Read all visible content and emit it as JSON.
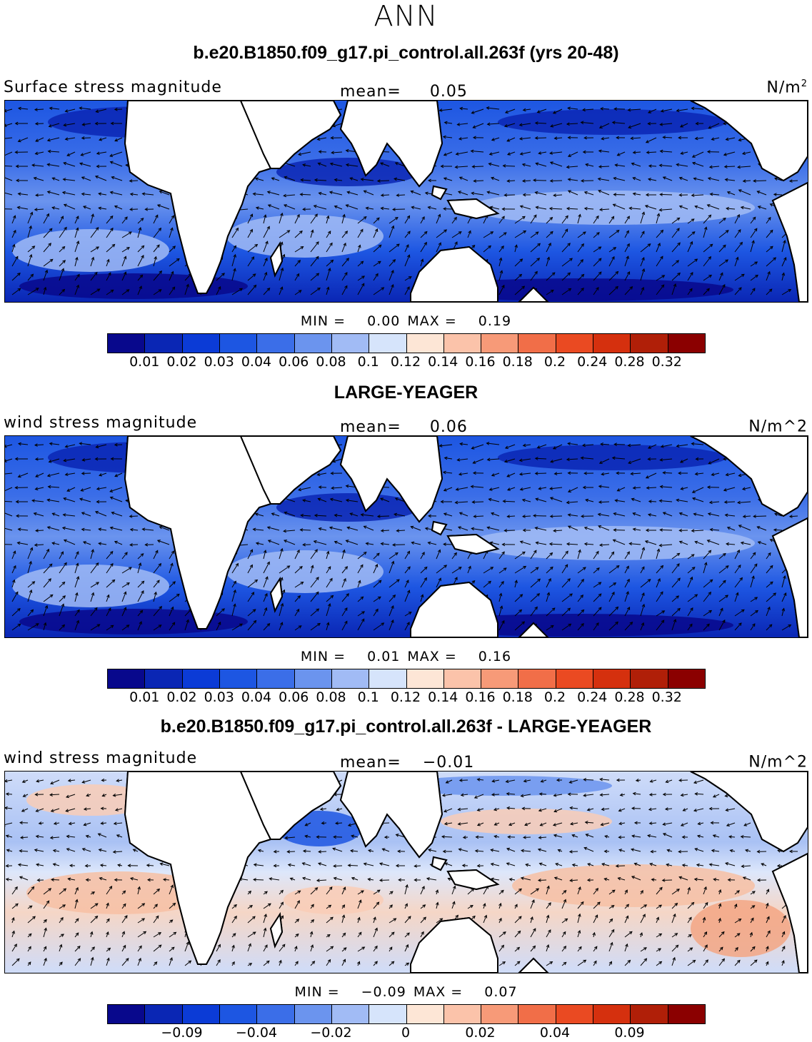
{
  "season": "ANN",
  "colorscale": [
    "#08088c",
    "#0a26b4",
    "#0b3bd6",
    "#1d56e2",
    "#3b6ee8",
    "#6b94ee",
    "#a1bbf5",
    "#d6e4fb",
    "#fde6d6",
    "#fbc3aa",
    "#f79a78",
    "#f16e48",
    "#ea4a22",
    "#d5300e",
    "#b01f08",
    "#8b0000"
  ],
  "panels": [
    {
      "title": "b.e20.B1850.f09_g17.pi_control.all.263f (yrs 20-48)",
      "left_label": "Surface stress magnitude",
      "mean_label": "mean=",
      "mean_value": "0.05",
      "units": "N/m",
      "units_sup": "2",
      "min_label": "MIN =",
      "min_value": "0.00",
      "max_label": "MAX =",
      "max_value": "0.19",
      "ticks": [
        "0.01",
        "0.02",
        "0.03",
        "0.04",
        "0.06",
        "0.08",
        "0.1",
        "0.12",
        "0.14",
        "0.16",
        "0.18",
        "0.2",
        "0.24",
        "0.28",
        "0.32"
      ]
    },
    {
      "title": "LARGE-YEAGER",
      "left_label": "wind stress magnitude",
      "mean_label": "mean=",
      "mean_value": "0.06",
      "units": "N/m^2",
      "units_sup": "",
      "min_label": "MIN =",
      "min_value": "0.01",
      "max_label": "MAX =",
      "max_value": "0.16",
      "ticks": [
        "0.01",
        "0.02",
        "0.03",
        "0.04",
        "0.06",
        "0.08",
        "0.1",
        "0.12",
        "0.14",
        "0.16",
        "0.18",
        "0.2",
        "0.24",
        "0.28",
        "0.32"
      ]
    },
    {
      "title": "b.e20.B1850.f09_g17.pi_control.all.263f - LARGE-YEAGER",
      "left_label": "wind stress magnitude",
      "mean_label": "mean=",
      "mean_value": "−0.01",
      "units": "N/m^2",
      "units_sup": "",
      "min_label": "MIN =",
      "min_value": "−0.09",
      "max_label": "MAX =",
      "max_value": "0.07",
      "ticks": [
        "−0.09",
        "−0.04",
        "−0.02",
        "0",
        "0.02",
        "0.04",
        "0.09"
      ]
    }
  ]
}
